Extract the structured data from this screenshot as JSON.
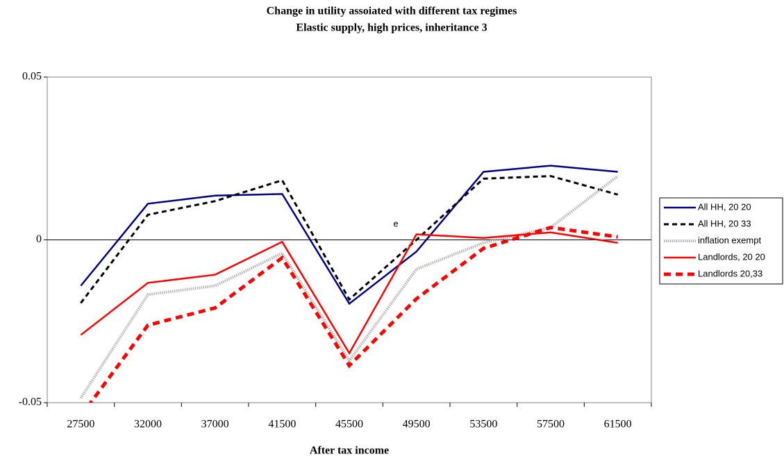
{
  "chart_data": {
    "type": "line",
    "title": "Change in utility assoiated with different tax regimes",
    "subtitle": "Elastic supply, high prices,  inheritance 3",
    "x_label": "After tax income",
    "annotation": "e",
    "categories": [
      "27500",
      "32000",
      "37000",
      "41500",
      "45500",
      "49500",
      "53500",
      "57500",
      "61500"
    ],
    "series": [
      {
        "name": "All HH, 20 20",
        "color": "#000080",
        "values": [
          -0.0141,
          0.0111,
          0.0136,
          0.0141,
          -0.0196,
          -0.0036,
          0.0209,
          0.0228,
          0.0209
        ]
      },
      {
        "name": "All HH, 20 33",
        "color": "#000000",
        "values": [
          -0.0194,
          0.0077,
          0.0119,
          0.0183,
          -0.0183,
          0,
          0.0188,
          0.0196,
          0.0139
        ]
      },
      {
        "name": "inflation exempt",
        "color": "#b0b0b0",
        "values": [
          -0.0486,
          -0.0168,
          -0.0141,
          -0.0041,
          -0.0371,
          -0.009,
          -0.0009,
          0.0038,
          0.0196
        ]
      },
      {
        "name": "Landlords, 20 20",
        "color": "#ff0000",
        "values": [
          -0.0292,
          -0.0132,
          -0.0107,
          -0.0006,
          -0.0348,
          0.0017,
          0.0006,
          0.0023,
          -0.0009
        ]
      },
      {
        "name": "Landlords 20,33",
        "color": "#ff0000",
        "values": [
          -0.0541,
          -0.0262,
          -0.0209,
          -0.0055,
          -0.0386,
          -0.0181,
          -0.0026,
          0.0038,
          0.0009
        ]
      }
    ],
    "ylim": [
      -0.05,
      0.05
    ],
    "yticks": [
      -0.05,
      0,
      0.05
    ],
    "legend": "right"
  }
}
